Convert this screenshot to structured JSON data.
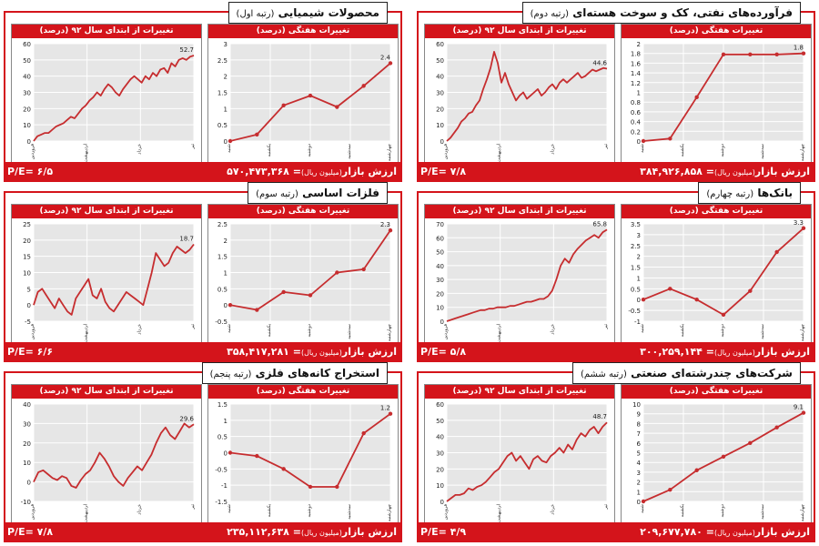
{
  "labels": {
    "ytd_title": "تغییرات از ابتدای سال ۹۲ (درصد)",
    "weekly_title": "تغییرات هفتگی (درصد)",
    "market_value_prefix": "ارزش بازار",
    "market_value_unit": "(میلیون ریال)",
    "pe_prefix": "P/E="
  },
  "colors": {
    "accent": "#d4141b",
    "line": "#c62d2f",
    "plot_bg": "#e6e6e6",
    "grid": "#ffffff"
  },
  "panels": [
    {
      "title": "فرآورده‌های نفتی، کک و سوخت هسته‌ای",
      "rank": "(رتبه دوم)",
      "pe": "۷/۸",
      "market_value": "۳۸۴,۹۲۶,۸۵۸"
    },
    {
      "title": "محصولات شیمیایی",
      "rank": "(رتبه اول)",
      "pe": "۶/۵",
      "market_value": "۵۷۰,۴۷۳,۳۶۸"
    },
    {
      "title": "بانک‌ها",
      "rank": "(رتبه چهارم)",
      "pe": "۵/۸",
      "market_value": "۳۰۰,۲۵۹,۱۴۴"
    },
    {
      "title": "فلزات اساسی",
      "rank": "(رتبه سوم)",
      "pe": "۶/۶",
      "market_value": "۳۵۸,۴۱۷,۲۸۱"
    },
    {
      "title": "شرکت‌های چندرشته‌ای صنعتی",
      "rank": "(رتبه ششم)",
      "pe": "۴/۹",
      "market_value": "۲۰۹,۶۷۷,۷۸۰"
    },
    {
      "title": "استخراج کانه‌های فلزی",
      "rank": "(رتبه پنجم)",
      "pe": "۷/۸",
      "market_value": "۲۳۵,۱۱۲,۶۳۸"
    }
  ],
  "chart_data": [
    {
      "panel": 0,
      "chart": "ytd",
      "type": "line",
      "title": "تغییرات از ابتدای سال ۹۲ (درصد)",
      "ylim": [
        0,
        60
      ],
      "yticks": [
        0,
        10,
        20,
        30,
        40,
        50,
        60
      ],
      "x_ticks": [
        "فروردین",
        "اردیبهشت",
        "خرداد",
        "تیر"
      ],
      "end_label": "44.6",
      "values": [
        0,
        2,
        5,
        8,
        12,
        14,
        17,
        18,
        22,
        25,
        32,
        38,
        45,
        55,
        48,
        36,
        42,
        35,
        30,
        25,
        28,
        30,
        26,
        28,
        30,
        32,
        28,
        30,
        33,
        35,
        32,
        36,
        38,
        36,
        38,
        40,
        42,
        39,
        40,
        42,
        44,
        43,
        44,
        45,
        44.6
      ]
    },
    {
      "panel": 0,
      "chart": "weekly",
      "type": "line",
      "title": "تغییرات هفتگی (درصد)",
      "ylim": [
        0,
        2
      ],
      "yticks": [
        0,
        0.2,
        0.4,
        0.6,
        0.8,
        1.0,
        1.2,
        1.4,
        1.6,
        1.8,
        2.0
      ],
      "x_ticks": [
        "شنبه",
        "یکشنبه",
        "دوشنبه",
        "سه‌شنبه",
        "چهارشنبه"
      ],
      "end_label": "1.8",
      "values": [
        0,
        0.05,
        0.9,
        1.78,
        1.78,
        1.78,
        1.8
      ]
    },
    {
      "panel": 1,
      "chart": "ytd",
      "type": "line",
      "title": "تغییرات از ابتدای سال ۹۲ (درصد)",
      "ylim": [
        0,
        60
      ],
      "yticks": [
        0,
        10,
        20,
        30,
        40,
        50,
        60
      ],
      "x_ticks": [
        "فروردین",
        "اردیبهشت",
        "خرداد",
        "تیر"
      ],
      "end_label": "52.7",
      "values": [
        0,
        3,
        4,
        5,
        5,
        7,
        9,
        10,
        11,
        13,
        15,
        14,
        17,
        20,
        22,
        25,
        27,
        30,
        28,
        32,
        35,
        33,
        30,
        28,
        32,
        35,
        38,
        40,
        38,
        36,
        40,
        38,
        42,
        40,
        44,
        45,
        42,
        48,
        46,
        50,
        51,
        50,
        52,
        52.7
      ]
    },
    {
      "panel": 1,
      "chart": "weekly",
      "type": "line",
      "title": "تغییرات هفتگی (درصد)",
      "ylim": [
        0,
        3
      ],
      "yticks": [
        0,
        0.5,
        1.0,
        1.5,
        2.0,
        2.5,
        3.0
      ],
      "x_ticks": [
        "شنبه",
        "یکشنبه",
        "دوشنبه",
        "سه‌شنبه",
        "چهارشنبه"
      ],
      "end_label": "2.4",
      "values": [
        0,
        0.2,
        1.1,
        1.4,
        1.05,
        1.7,
        2.4
      ]
    },
    {
      "panel": 2,
      "chart": "ytd",
      "type": "line",
      "title": "تغییرات از ابتدای سال ۹۲ (درصد)",
      "ylim": [
        0,
        70
      ],
      "yticks": [
        0,
        10,
        20,
        30,
        40,
        50,
        60,
        70
      ],
      "x_ticks": [
        "فروردین",
        "اردیبهشت",
        "خرداد",
        "تیر"
      ],
      "end_label": "65.8",
      "values": [
        0,
        1,
        2,
        3,
        4,
        5,
        6,
        7,
        8,
        8,
        9,
        9,
        10,
        10,
        10,
        11,
        11,
        12,
        13,
        14,
        14,
        15,
        16,
        16,
        18,
        22,
        30,
        40,
        45,
        42,
        48,
        52,
        55,
        58,
        60,
        62,
        60,
        64,
        65.8
      ]
    },
    {
      "panel": 2,
      "chart": "weekly",
      "type": "line",
      "title": "تغییرات هفتگی (درصد)",
      "ylim": [
        -1,
        3.5
      ],
      "yticks": [
        -1.0,
        -0.5,
        0,
        0.5,
        1.0,
        1.5,
        2.0,
        2.5,
        3.0,
        3.5
      ],
      "x_ticks": [
        "شنبه",
        "یکشنبه",
        "دوشنبه",
        "سه‌شنبه",
        "چهارشنبه"
      ],
      "end_label": "3.3",
      "values": [
        0,
        0.5,
        0,
        -0.7,
        0.4,
        2.2,
        3.3
      ]
    },
    {
      "panel": 3,
      "chart": "ytd",
      "type": "line",
      "title": "تغییرات از ابتدای سال ۹۲ (درصد)",
      "ylim": [
        -5,
        25
      ],
      "yticks": [
        -5,
        0,
        5,
        10,
        15,
        20,
        25
      ],
      "x_ticks": [
        "فروردین",
        "اردیبهشت",
        "خرداد",
        "تیر"
      ],
      "end_label": "18.7",
      "values": [
        0,
        4,
        5,
        3,
        1,
        -1,
        2,
        0,
        -2,
        -3,
        2,
        4,
        6,
        8,
        3,
        2,
        5,
        1,
        -1,
        -2,
        0,
        2,
        4,
        3,
        2,
        1,
        0,
        5,
        10,
        16,
        14,
        12,
        13,
        16,
        18,
        17,
        16,
        17,
        18.7
      ]
    },
    {
      "panel": 3,
      "chart": "weekly",
      "type": "line",
      "title": "تغییرات هفتگی (درصد)",
      "ylim": [
        -0.5,
        2.5
      ],
      "yticks": [
        -0.5,
        0,
        0.5,
        1.0,
        1.5,
        2.0,
        2.5
      ],
      "x_ticks": [
        "شنبه",
        "یکشنبه",
        "دوشنبه",
        "سه‌شنبه",
        "چهارشنبه"
      ],
      "end_label": "2.3",
      "values": [
        0,
        -0.15,
        0.4,
        0.3,
        1.0,
        1.1,
        2.3
      ]
    },
    {
      "panel": 4,
      "chart": "ytd",
      "type": "line",
      "title": "تغییرات از ابتدای سال ۹۲ (درصد)",
      "ylim": [
        0,
        60
      ],
      "yticks": [
        0,
        10,
        20,
        30,
        40,
        50,
        60
      ],
      "x_ticks": [
        "فروردین",
        "اردیبهشت",
        "خرداد",
        "تیر"
      ],
      "end_label": "48.7",
      "values": [
        0,
        2,
        4,
        4,
        5,
        8,
        7,
        9,
        10,
        12,
        15,
        18,
        20,
        24,
        28,
        30,
        25,
        28,
        24,
        20,
        26,
        28,
        25,
        24,
        28,
        30,
        33,
        30,
        35,
        32,
        38,
        42,
        40,
        44,
        46,
        42,
        46,
        48.7
      ]
    },
    {
      "panel": 4,
      "chart": "weekly",
      "type": "line",
      "title": "تغییرات هفتگی (درصد)",
      "ylim": [
        0,
        10
      ],
      "yticks": [
        0,
        1,
        2,
        3,
        4,
        5,
        6,
        7,
        8,
        9,
        10
      ],
      "x_ticks": [
        "شنبه",
        "یکشنبه",
        "دوشنبه",
        "سه‌شنبه",
        "چهارشنبه"
      ],
      "end_label": "9.1",
      "values": [
        0,
        1.2,
        3.2,
        4.6,
        6.0,
        7.6,
        9.1
      ]
    },
    {
      "panel": 5,
      "chart": "ytd",
      "type": "line",
      "title": "تغییرات از ابتدای سال ۹۲ (درصد)",
      "ylim": [
        -10,
        40
      ],
      "yticks": [
        -10,
        0,
        10,
        20,
        30,
        40
      ],
      "x_ticks": [
        "فروردین",
        "اردیبهشت",
        "خرداد",
        "تیر"
      ],
      "end_label": "29.6",
      "values": [
        0,
        5,
        6,
        4,
        2,
        1,
        3,
        2,
        -2,
        -3,
        1,
        4,
        6,
        10,
        15,
        12,
        8,
        3,
        0,
        -2,
        2,
        5,
        8,
        6,
        10,
        14,
        20,
        25,
        28,
        24,
        22,
        26,
        30,
        28,
        29.6
      ]
    },
    {
      "panel": 5,
      "chart": "weekly",
      "type": "line",
      "title": "تغییرات هفتگی (درصد)",
      "ylim": [
        -1.5,
        1.5
      ],
      "yticks": [
        -1.5,
        -1.0,
        -0.5,
        0,
        0.5,
        1.0,
        1.5
      ],
      "x_ticks": [
        "شنبه",
        "یکشنبه",
        "دوشنبه",
        "سه‌شنبه",
        "چهارشنبه"
      ],
      "end_label": "1.2",
      "values": [
        0,
        -0.1,
        -0.5,
        -1.05,
        -1.05,
        0.6,
        1.2
      ]
    }
  ]
}
